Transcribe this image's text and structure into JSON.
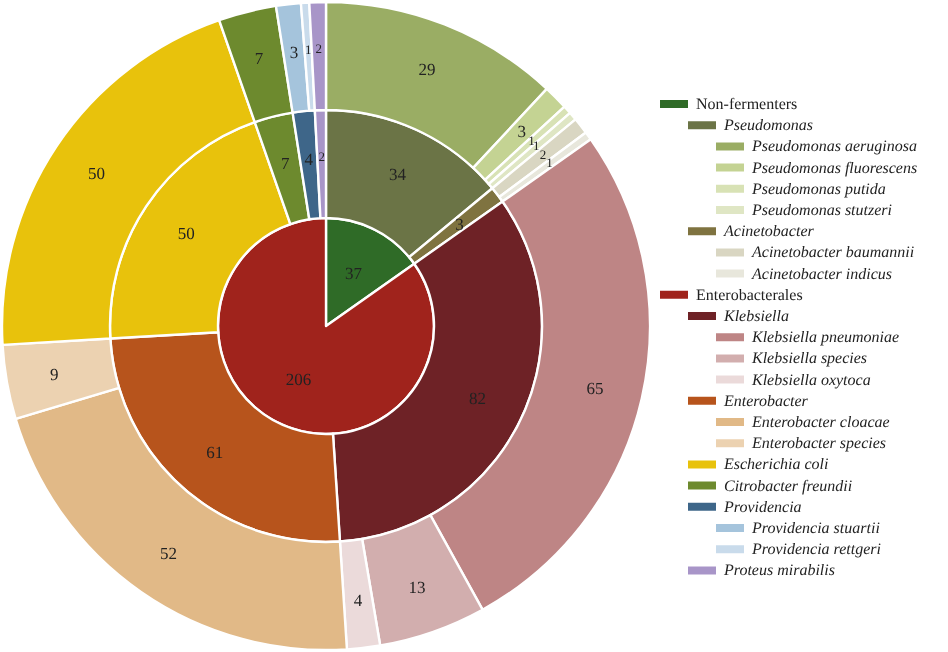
{
  "chart_data": {
    "type": "pie",
    "data_labels": true,
    "legend": "right",
    "categories": [
      "Non-fermenters",
      "Pseudomonas",
      "Pseudomonas aeruginosa",
      "Pseudomonas fluorescens",
      "Pseudomonas putida",
      "Pseudomonas stutzeri",
      "Acinetobacter",
      "Acinetobacter baumannii",
      "Acinetobacter indicus",
      "Enterobacterales",
      "Klebsiella",
      "Klebsiella pneumoniae",
      "Klebsiella species",
      "Klebsiella oxytoca",
      "Enterobacter",
      "Enterobacter cloacae",
      "Enterobacter species",
      "Escherichia coli",
      "Citrobacter freundii",
      "Providencia",
      "Providencia stuartii",
      "Providencia rettgeri",
      "Proteus mirabilis"
    ],
    "colors": [
      "#2f6b27",
      "#6b7446",
      "#9aad64",
      "#c4d393",
      "#d8e2b5",
      "#dfe6c4",
      "#7f7340",
      "#d9d6c2",
      "#e8e7dc",
      "#a0231c",
      "#6e2226",
      "#be8585",
      "#d2aeae",
      "#ebdada",
      "#b7541c",
      "#e1b987",
      "#ecd2b1",
      "#e8c20c",
      "#6d8a2e",
      "#3e6689",
      "#a5c4dc",
      "#c9dbeb",
      "#a895c8"
    ],
    "series": [
      {
        "values": [
          37,
          null,
          null,
          null,
          null,
          null,
          null,
          null,
          null,
          206,
          null,
          null,
          null,
          null,
          null,
          null,
          null,
          null,
          null,
          null,
          null,
          null,
          null
        ]
      },
      {
        "values": [
          null,
          34,
          null,
          null,
          null,
          null,
          3,
          null,
          null,
          null,
          82,
          null,
          null,
          null,
          61,
          null,
          null,
          50,
          7,
          4,
          null,
          null,
          2
        ]
      },
      {
        "values": [
          null,
          null,
          29,
          3,
          1,
          1,
          null,
          2,
          1,
          null,
          null,
          65,
          13,
          4,
          null,
          52,
          9,
          50,
          7,
          null,
          3,
          1,
          2
        ]
      }
    ]
  }
}
